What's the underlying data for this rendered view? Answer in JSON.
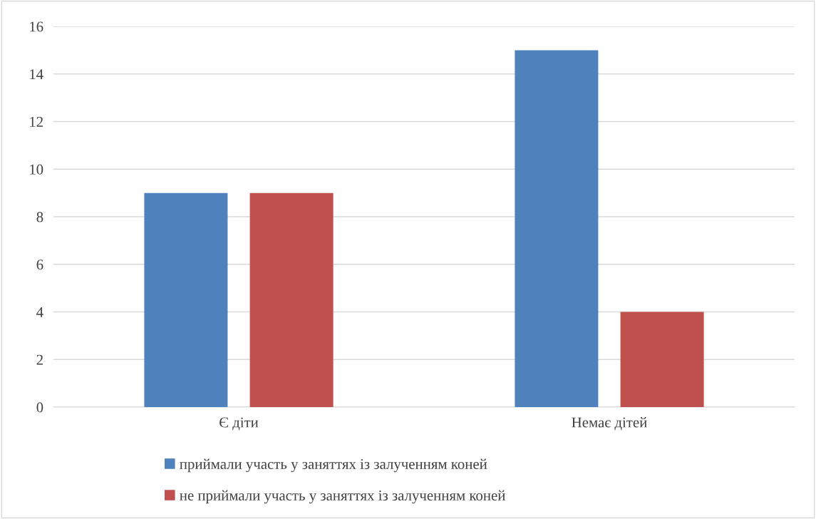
{
  "chart_data": {
    "type": "bar",
    "categories": [
      "Є діти",
      "Немає дітей"
    ],
    "series": [
      {
        "name": "приймали участь у заняттях із залученням коней",
        "color": "#4f81bd",
        "values": [
          9,
          15
        ]
      },
      {
        "name": "не приймали участь у заняттях із залученням коней",
        "color": "#c0504d",
        "values": [
          9,
          4
        ]
      }
    ],
    "ylim": [
      0,
      16
    ],
    "yticks": [
      0,
      2,
      4,
      6,
      8,
      10,
      12,
      14,
      16
    ],
    "grid": "y",
    "legend": "bottom"
  }
}
